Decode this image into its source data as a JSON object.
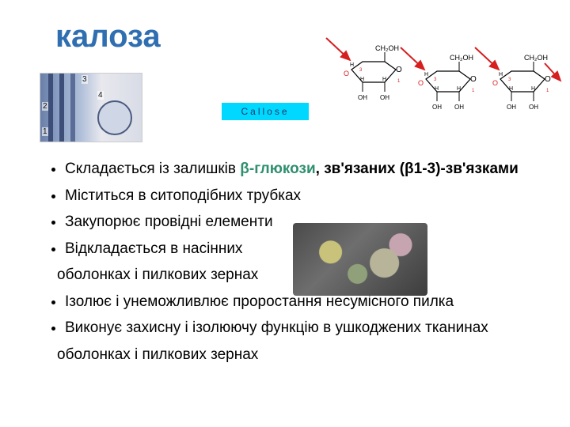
{
  "title": {
    "text": "калоза",
    "color": "#2f6fb1"
  },
  "callose_label": {
    "text": "Callose",
    "bg": "#00d8ff",
    "color": "#1a3a6a"
  },
  "micro_labels": {
    "l1": "1",
    "l2": "2",
    "l3": "3",
    "l4": "4"
  },
  "chem": {
    "ring_atom": "O",
    "top_group": "CH₂OH",
    "side_top": "H",
    "side_bot_l": "OH",
    "side_bot_r": "H",
    "oh": "OH",
    "small_h": "H",
    "small_1": "1",
    "small_3": "3",
    "red_o": "O",
    "arrow_color": "#d61f1f",
    "text_color": "#000000",
    "red_color": "#d61f1f",
    "line_color": "#000000"
  },
  "bullets": {
    "items": [
      {
        "pre": "Складається із залишків ",
        "hl": "β-глюкози",
        "hl_color": "#2f8f6f",
        "post": ",   зв'язаних   (β1-3)-зв'язками",
        "bold_post": true
      },
      {
        "pre": "Міститься в ситоподібних трубках"
      },
      {
        "pre": "Закупорює провідні елементи"
      },
      {
        "pre": "Відкладається в насінних"
      },
      {
        "cont": "оболонках і пилкових зернах"
      },
      {
        "pre": "Ізолює і унеможливлює проростання несумісного пилка"
      },
      {
        "pre": "Виконує захисну і ізолюючу функцію в ушкоджених тканинах"
      }
    ]
  }
}
